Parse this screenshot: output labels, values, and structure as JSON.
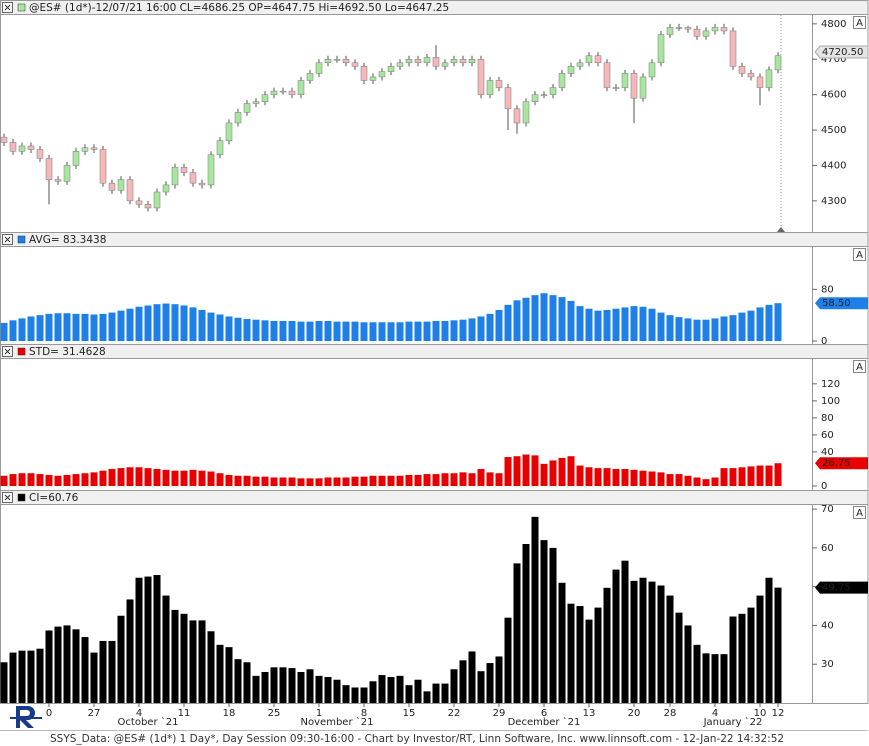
{
  "scale_button": "A",
  "footer": "SSYS_Data: @ES# (1d*) 1 Day*, Day Session 09:30-16:00 - Chart by Investor/RT, Linn Software, Inc. www.linnsoft.com - 12-Jan-22 14:32:52",
  "chart_data": [
    {
      "type": "candlestick",
      "title": "@ES# (1d*)-12/07/21 16:00 CL=4686.25 OP=4647.75 Hi=4692.50 Lo=4647.25",
      "up_color": "#a8e6a0",
      "down_color": "#f4b8b8",
      "open": [
        4480,
        4465,
        4440,
        4455,
        4445,
        4420,
        4360,
        4355,
        4400,
        4440,
        4450,
        4445,
        4350,
        4330,
        4360,
        4300,
        4290,
        4280,
        4325,
        4345,
        4395,
        4380,
        4350,
        4345,
        4430,
        4470,
        4520,
        4550,
        4575,
        4580,
        4600,
        4610,
        4610,
        4600,
        4640,
        4660,
        4690,
        4700,
        4700,
        4690,
        4680,
        4640,
        4650,
        4665,
        4680,
        4690,
        4700,
        4690,
        4705,
        4680,
        4690,
        4700,
        4690,
        4700,
        4600,
        4640,
        4620,
        4560,
        4520,
        4580,
        4600,
        4600,
        4620,
        4660,
        4680,
        4690,
        4710,
        4690,
        4620,
        4620,
        4660,
        4590,
        4650,
        4690,
        4770,
        4790,
        4790,
        4785,
        4765,
        4780,
        4790,
        4780,
        4680,
        4660,
        4650,
        4620,
        4670
      ],
      "high": [
        4490,
        4475,
        4465,
        4465,
        4455,
        4430,
        4370,
        4410,
        4450,
        4460,
        4460,
        4455,
        4360,
        4370,
        4370,
        4310,
        4300,
        4335,
        4355,
        4405,
        4405,
        4390,
        4360,
        4440,
        4480,
        4530,
        4560,
        4585,
        4590,
        4610,
        4620,
        4620,
        4620,
        4650,
        4670,
        4700,
        4710,
        4710,
        4710,
        4700,
        4690,
        4660,
        4675,
        4690,
        4700,
        4710,
        4710,
        4715,
        4740,
        4700,
        4710,
        4710,
        4710,
        4710,
        4650,
        4650,
        4630,
        4570,
        4590,
        4610,
        4610,
        4630,
        4670,
        4690,
        4700,
        4720,
        4720,
        4700,
        4630,
        4670,
        4670,
        4660,
        4700,
        4780,
        4800,
        4800,
        4795,
        4795,
        4790,
        4800,
        4800,
        4790,
        4690,
        4670,
        4660,
        4680,
        4720
      ],
      "low": [
        4455,
        4430,
        4430,
        4435,
        4410,
        4290,
        4345,
        4345,
        4390,
        4430,
        4435,
        4340,
        4320,
        4320,
        4290,
        4280,
        4270,
        4270,
        4315,
        4335,
        4370,
        4340,
        4335,
        4335,
        4420,
        4460,
        4510,
        4540,
        4565,
        4570,
        4590,
        4600,
        4590,
        4590,
        4630,
        4650,
        4680,
        4690,
        4680,
        4670,
        4630,
        4630,
        4640,
        4655,
        4670,
        4680,
        4680,
        4680,
        4670,
        4670,
        4680,
        4680,
        4680,
        4590,
        4590,
        4610,
        4500,
        4490,
        4510,
        4570,
        4590,
        4590,
        4610,
        4650,
        4670,
        4680,
        4680,
        4610,
        4610,
        4610,
        4520,
        4580,
        4640,
        4680,
        4760,
        4780,
        4775,
        4755,
        4755,
        4770,
        4770,
        4670,
        4650,
        4640,
        4570,
        4610,
        4660
      ],
      "close": [
        4465,
        4440,
        4455,
        4445,
        4420,
        4360,
        4355,
        4400,
        4440,
        4450,
        4445,
        4350,
        4330,
        4360,
        4300,
        4290,
        4280,
        4325,
        4345,
        4395,
        4380,
        4350,
        4345,
        4430,
        4470,
        4520,
        4550,
        4575,
        4580,
        4600,
        4610,
        4610,
        4600,
        4640,
        4660,
        4690,
        4700,
        4700,
        4690,
        4680,
        4640,
        4650,
        4665,
        4680,
        4690,
        4700,
        4690,
        4705,
        4680,
        4690,
        4700,
        4690,
        4700,
        4600,
        4640,
        4620,
        4560,
        4520,
        4580,
        4600,
        4600,
        4620,
        4660,
        4680,
        4690,
        4710,
        4690,
        4620,
        4620,
        4660,
        4590,
        4650,
        4690,
        4770,
        4790,
        4790,
        4785,
        4765,
        4780,
        4790,
        4780,
        4680,
        4660,
        4650,
        4620,
        4670,
        4710
      ],
      "ylim": [
        4212,
        4825
      ],
      "yticks": [
        4300,
        4400,
        4500,
        4600,
        4700,
        4800
      ],
      "last_value": {
        "value": 4720.5,
        "label": "4720.50"
      },
      "last_color": "#e4e4e4"
    },
    {
      "type": "bar",
      "title": "AVG= 83.3438",
      "color": "#1e80e6",
      "values": [
        28,
        32,
        35,
        38,
        40,
        42,
        43,
        43,
        42,
        42,
        41,
        42,
        44,
        47,
        50,
        53,
        55,
        57,
        58,
        57,
        55,
        52,
        48,
        44,
        41,
        38,
        36,
        34,
        33,
        32,
        31,
        31,
        31,
        30,
        30,
        31,
        31,
        30,
        30,
        30,
        29,
        29,
        29,
        29,
        29,
        30,
        30,
        30,
        31,
        31,
        32,
        33,
        35,
        38,
        42,
        48,
        56,
        63,
        67,
        71,
        74,
        71,
        68,
        62,
        54,
        50,
        47,
        48,
        50,
        52,
        54,
        53,
        50,
        44,
        40,
        37,
        35,
        33,
        33,
        35,
        38,
        40,
        44,
        47,
        52,
        56,
        58.5
      ],
      "ylim": [
        0,
        144
      ],
      "yticks": [
        0,
        80
      ],
      "last_value": {
        "value": 58.5,
        "label": "58.50"
      },
      "last_color": "#1e80e6"
    },
    {
      "type": "bar",
      "title": "STD= 31.4628",
      "color": "#e80000",
      "values": [
        12,
        14,
        15,
        15,
        14,
        13,
        12,
        13,
        14,
        15,
        16,
        18,
        20,
        21,
        22,
        22,
        21,
        20,
        19,
        18,
        18,
        19,
        18,
        17,
        15,
        13,
        12,
        12,
        11,
        11,
        10,
        10,
        10,
        9,
        9,
        9,
        10,
        10,
        10,
        11,
        11,
        12,
        12,
        12,
        12,
        13,
        13,
        14,
        14,
        15,
        15,
        16,
        15,
        20,
        16,
        15,
        34,
        35,
        37,
        36,
        26,
        30,
        33,
        35,
        24,
        22,
        21,
        21,
        20,
        20,
        19,
        18,
        17,
        16,
        14,
        14,
        12,
        10,
        8,
        10,
        21,
        21,
        22,
        23,
        24,
        24,
        26.75
      ],
      "ylim": [
        0,
        148
      ],
      "yticks": [
        0,
        40,
        60,
        80,
        100,
        120
      ],
      "last_value": {
        "value": 26.75,
        "label": "26.75"
      },
      "last_color": "#e80000"
    },
    {
      "type": "bar",
      "title": "CI=60.76",
      "color": "#000000",
      "values": [
        30.5,
        33,
        33.5,
        33.5,
        34,
        38.7,
        39.7,
        40,
        39,
        37,
        33,
        36,
        36,
        42.5,
        46.7,
        52.3,
        52.6,
        53,
        47.7,
        44,
        43,
        41.3,
        41.3,
        38.5,
        35,
        34.4,
        31.3,
        30.5,
        27,
        28,
        29.2,
        29.2,
        29,
        28,
        28.7,
        27,
        26.7,
        26,
        24.6,
        24,
        24,
        25.6,
        27.2,
        26.7,
        27,
        24.6,
        26,
        23,
        25,
        25,
        28.7,
        31,
        33.3,
        28.2,
        30.3,
        32,
        42,
        56,
        61,
        68,
        62,
        60,
        51,
        45.6,
        45,
        41.5,
        44.6,
        49.7,
        54.4,
        56.7,
        51.5,
        52.3,
        51.3,
        50.3,
        47.7,
        43.3,
        40,
        35,
        32.8,
        32.6,
        32.6,
        42.3,
        43,
        44.6,
        47.7,
        52.3,
        49.75
      ],
      "ylim": [
        20,
        70.8
      ],
      "yticks": [
        30,
        40,
        50,
        60,
        70
      ],
      "last_value": {
        "value": 49.75,
        "label": "49.75"
      },
      "last_color": "#000000",
      "categories": [
        null,
        null,
        null,
        null,
        null,
        "0",
        null,
        null,
        null,
        null,
        "27",
        null,
        null,
        null,
        null,
        "4",
        null,
        null,
        null,
        null,
        "11",
        null,
        null,
        null,
        null,
        "18",
        null,
        null,
        null,
        null,
        "25",
        null,
        null,
        null,
        null,
        "1",
        null,
        null,
        null,
        null,
        "8",
        null,
        null,
        null,
        null,
        "15",
        null,
        null,
        null,
        null,
        "22",
        null,
        null,
        null,
        null,
        "29",
        null,
        null,
        null,
        null,
        "6",
        null,
        null,
        null,
        null,
        "13",
        null,
        null,
        null,
        null,
        "20",
        null,
        null,
        null,
        "28",
        null,
        null,
        null,
        null,
        "4",
        null,
        null,
        null,
        null,
        "10",
        null,
        "12"
      ],
      "months": [
        {
          "label": "October `21",
          "category": 16
        },
        {
          "label": "November `21",
          "category": 37
        },
        {
          "label": "December `21",
          "category": 60
        },
        {
          "label": "January `22",
          "category": 81
        }
      ]
    }
  ]
}
